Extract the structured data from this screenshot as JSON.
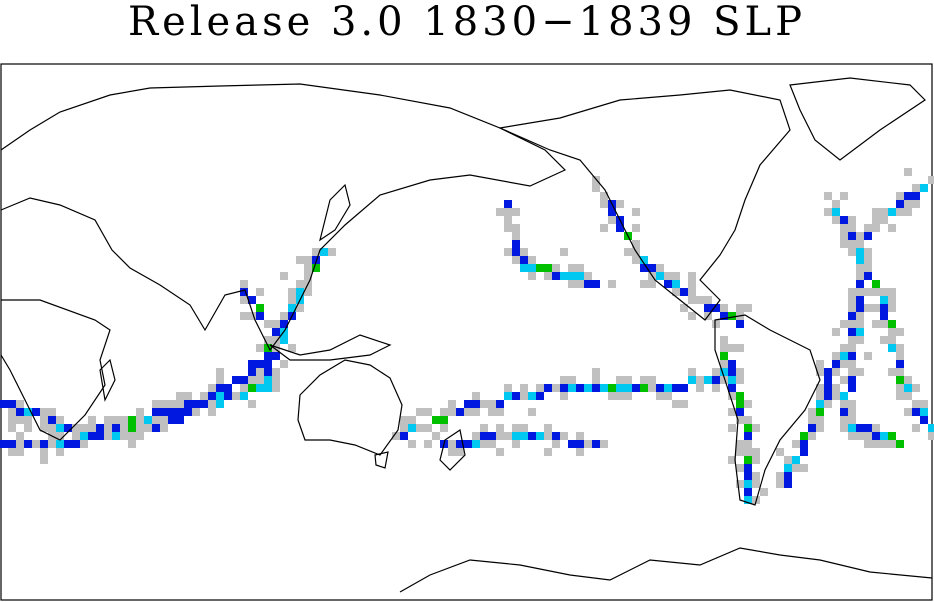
{
  "header": {
    "title": "Release 3.0 1830−1839 SLP"
  }
}
